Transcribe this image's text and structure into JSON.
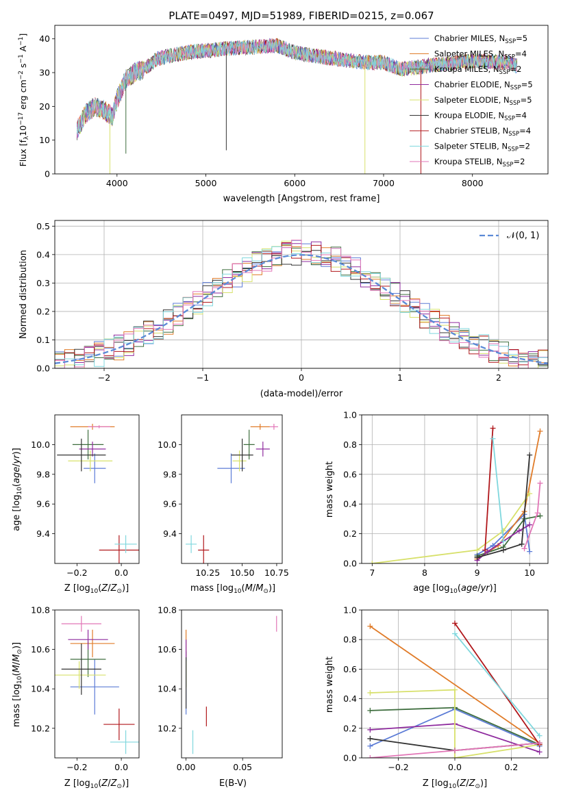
{
  "figure_title": "PLATE=0497, MJD=51989, FIBERID=0215, z=0.067",
  "colors": [
    "#5b7bd6",
    "#e07b28",
    "#3d6d3d",
    "#8e2a9e",
    "#d7e06a",
    "#333333",
    "#b0161a",
    "#7fd7dd",
    "#e276b7"
  ],
  "legend_labels": [
    "Chabrier MILES, N_SSP=5",
    "Salpeter MILES, N_SSP=4",
    "Kroupa MILES, N_SSP=2",
    "Chabrier ELODIE, N_SSP=5",
    "Salpeter ELODIE, N_SSP=5",
    "Kroupa ELODIE, N_SSP=4",
    "Chabrier STELIB, N_SSP=4",
    "Salpeter STELIB, N_SSP=2",
    "Kroupa STELIB, N_SSP=2"
  ],
  "chart_data": [
    {
      "id": "spectrum",
      "type": "line",
      "xlabel": "wavelength [Angstrom, rest frame]",
      "ylabel": "Flux [f_λ10^-17 erg cm^-2 s^-1 A^-1]",
      "xlim": [
        3300,
        8850
      ],
      "ylim": [
        0,
        44
      ],
      "xticks": [
        4000,
        5000,
        6000,
        7000,
        8000
      ],
      "yticks": [
        0,
        10,
        20,
        30,
        40
      ],
      "grid": false,
      "legend": "upper-right",
      "continuum_knots": [
        [
          3550,
          13
        ],
        [
          3650,
          18
        ],
        [
          3750,
          20
        ],
        [
          3850,
          19
        ],
        [
          3950,
          17
        ],
        [
          4000,
          22
        ],
        [
          4100,
          28
        ],
        [
          4200,
          30
        ],
        [
          4300,
          31
        ],
        [
          4450,
          34
        ],
        [
          4600,
          35
        ],
        [
          4800,
          36
        ],
        [
          5000,
          36.5
        ],
        [
          5200,
          37
        ],
        [
          5500,
          37.5
        ],
        [
          5800,
          38
        ],
        [
          6000,
          36
        ],
        [
          6200,
          35
        ],
        [
          6500,
          34
        ],
        [
          6800,
          33
        ],
        [
          7000,
          33
        ],
        [
          7200,
          31
        ],
        [
          7500,
          32
        ],
        [
          8000,
          33.5
        ],
        [
          8400,
          33
        ],
        [
          8500,
          32
        ]
      ],
      "spikes": [
        [
          3920,
          0
        ],
        [
          4100,
          6
        ],
        [
          5230,
          7
        ],
        [
          6790,
          0
        ],
        [
          7420,
          0
        ]
      ]
    },
    {
      "id": "residuals",
      "type": "histogram",
      "xlabel": "(data-model)/error",
      "ylabel": "Normed distribution",
      "xlim": [
        -2.5,
        2.5
      ],
      "ylim": [
        0,
        0.52
      ],
      "xticks": [
        -2,
        -1,
        0,
        1,
        2
      ],
      "yticks": [
        0.0,
        0.1,
        0.2,
        0.3,
        0.4,
        0.5
      ],
      "grid": true,
      "bin_edges_start": -2.5,
      "bin_width": 0.1,
      "reference_curve": "𝒩(0, 1)",
      "legend": "upper-right"
    },
    {
      "id": "age-vs-Z",
      "type": "errorbar",
      "xlabel": "Z [log10(Z/Z☉)]",
      "ylabel": "age  [log10(age/yr)]",
      "xlim": [
        -0.3,
        0.08
      ],
      "ylim": [
        9.2,
        10.2
      ],
      "xticks": [
        -0.2,
        0.0
      ],
      "yticks": [
        9.4,
        9.6,
        9.8,
        10.0
      ],
      "grid": false,
      "points": [
        {
          "x": -0.12,
          "xerr": 0.05,
          "y": 9.84,
          "yerr": 0.1
        },
        {
          "x": -0.13,
          "xerr": 0.1,
          "y": 10.12,
          "yerr": 0.02
        },
        {
          "x": -0.15,
          "xerr": 0.07,
          "y": 10.0,
          "yerr": 0.1
        },
        {
          "x": -0.13,
          "xerr": 0.06,
          "y": 9.97,
          "yerr": 0.05
        },
        {
          "x": -0.14,
          "xerr": 0.1,
          "y": 9.89,
          "yerr": 0.07
        },
        {
          "x": -0.18,
          "xerr": 0.11,
          "y": 9.93,
          "yerr": 0.11
        },
        {
          "x": -0.01,
          "xerr": 0.09,
          "y": 9.29,
          "yerr": 0.1
        },
        {
          "x": 0.02,
          "xerr": 0.05,
          "y": 9.33,
          "yerr": 0.06
        },
        {
          "x": -0.1,
          "xerr": 0.05,
          "y": 10.12,
          "yerr": 0.01
        }
      ]
    },
    {
      "id": "age-vs-mass",
      "type": "errorbar",
      "xlabel": "mass [log10(M/M☉)]",
      "ylabel": "",
      "xlim": [
        10.06,
        10.79
      ],
      "ylim": [
        9.2,
        10.2
      ],
      "xticks": [
        10.25,
        10.5,
        10.75
      ],
      "xticklabels": [
        "10.25",
        "10.50",
        "10.75"
      ],
      "yticks": [
        9.4,
        9.6,
        9.8,
        10.0
      ],
      "grid": false,
      "points": [
        {
          "x": 10.42,
          "xerr": 0.1,
          "y": 9.84,
          "yerr": 0.1
        },
        {
          "x": 10.63,
          "xerr": 0.07,
          "y": 10.12,
          "yerr": 0.02
        },
        {
          "x": 10.55,
          "xerr": 0.04,
          "y": 10.0,
          "yerr": 0.1
        },
        {
          "x": 10.65,
          "xerr": 0.05,
          "y": 9.97,
          "yerr": 0.05
        },
        {
          "x": 10.48,
          "xerr": 0.05,
          "y": 9.89,
          "yerr": 0.07
        },
        {
          "x": 10.5,
          "xerr": 0.08,
          "y": 9.93,
          "yerr": 0.11
        },
        {
          "x": 10.22,
          "xerr": 0.04,
          "y": 9.29,
          "yerr": 0.1
        },
        {
          "x": 10.13,
          "xerr": 0.04,
          "y": 9.33,
          "yerr": 0.06
        },
        {
          "x": 10.73,
          "xerr": 0.03,
          "y": 10.12,
          "yerr": 0.02
        }
      ]
    },
    {
      "id": "weight-vs-age",
      "type": "line",
      "xlabel": "age  [log10(age/yr)]",
      "ylabel": "mass weight",
      "xlim": [
        6.8,
        10.35
      ],
      "ylim": [
        0,
        1
      ],
      "xticks": [
        7,
        8,
        9,
        10
      ],
      "yticks": [
        0.0,
        0.2,
        0.4,
        0.6,
        0.8,
        1.0
      ],
      "grid": true,
      "series": [
        {
          "x": [
            9.0,
            9.3,
            9.9,
            10.0
          ],
          "y": [
            0.06,
            0.12,
            0.33,
            0.08
          ]
        },
        {
          "x": [
            9.0,
            9.4,
            9.9,
            10.2
          ],
          "y": [
            0.03,
            0.12,
            0.35,
            0.89
          ]
        },
        {
          "x": [
            9.0,
            9.5,
            9.9,
            10.2
          ],
          "y": [
            0.05,
            0.11,
            0.3,
            0.32
          ]
        },
        {
          "x": [
            9.0,
            9.2,
            9.8,
            10.0
          ],
          "y": [
            0.02,
            0.08,
            0.22,
            0.26
          ]
        },
        {
          "x": [
            7.0,
            9.0,
            9.5,
            10.0
          ],
          "y": [
            0.0,
            0.09,
            0.22,
            0.47
          ]
        },
        {
          "x": [
            9.0,
            9.5,
            9.85,
            10.0
          ],
          "y": [
            0.04,
            0.09,
            0.13,
            0.73
          ]
        },
        {
          "x": [
            9.15,
            9.3
          ],
          "y": [
            0.09,
            0.91
          ]
        },
        {
          "x": [
            9.3,
            9.5
          ],
          "y": [
            0.84,
            0.15
          ]
        },
        {
          "x": [
            9.9,
            10.15,
            10.2
          ],
          "y": [
            0.1,
            0.34,
            0.54
          ]
        }
      ]
    },
    {
      "id": "mass-vs-Z",
      "type": "errorbar",
      "xlabel": "Z [log10(Z/Z☉)]",
      "ylabel": "mass [log10(M/M☉)]",
      "xlim": [
        -0.3,
        0.08
      ],
      "ylim": [
        10.05,
        10.8
      ],
      "xticks": [
        -0.2,
        0.0
      ],
      "yticks": [
        10.2,
        10.4,
        10.6,
        10.8
      ],
      "grid": false,
      "points": [
        {
          "x": -0.12,
          "xerr": 0.11,
          "y": 10.41,
          "yerr": 0.14
        },
        {
          "x": -0.13,
          "xerr": 0.1,
          "y": 10.63,
          "yerr": 0.07
        },
        {
          "x": -0.15,
          "xerr": 0.08,
          "y": 10.55,
          "yerr": 0.09
        },
        {
          "x": -0.15,
          "xerr": 0.09,
          "y": 10.65,
          "yerr": 0.05
        },
        {
          "x": -0.19,
          "xerr": 0.12,
          "y": 10.47,
          "yerr": 0.07
        },
        {
          "x": -0.18,
          "xerr": 0.09,
          "y": 10.5,
          "yerr": 0.13
        },
        {
          "x": -0.01,
          "xerr": 0.07,
          "y": 10.22,
          "yerr": 0.08
        },
        {
          "x": 0.02,
          "xerr": 0.07,
          "y": 10.13,
          "yerr": 0.06
        },
        {
          "x": -0.18,
          "xerr": 0.09,
          "y": 10.73,
          "yerr": 0.04
        }
      ]
    },
    {
      "id": "mass-vs-ebv",
      "type": "errorbar",
      "xlabel": "E(B-V)",
      "ylabel": "",
      "xlim": [
        -0.004,
        0.085
      ],
      "ylim": [
        10.05,
        10.8
      ],
      "xticks": [
        0.0,
        0.05
      ],
      "xticklabels": [
        "0.00",
        "0.05"
      ],
      "yticks": [
        10.2,
        10.4,
        10.6,
        10.8
      ],
      "grid": false,
      "points": [
        {
          "x": 0.0,
          "xerr": 0.0,
          "y": 10.41,
          "yerr": 0.14
        },
        {
          "x": 0.0,
          "xerr": 0.0,
          "y": 10.63,
          "yerr": 0.07
        },
        {
          "x": 0.0,
          "xerr": 0.0,
          "y": 10.5,
          "yerr": 0.09
        },
        {
          "x": 0.0,
          "xerr": 0.0,
          "y": 10.6,
          "yerr": 0.05
        },
        {
          "x": 0.0,
          "xerr": 0.0,
          "y": 10.47,
          "yerr": 0.07
        },
        {
          "x": 0.0,
          "xerr": 0.0,
          "y": 10.43,
          "yerr": 0.13
        },
        {
          "x": 0.018,
          "xerr": 0.0,
          "y": 10.26,
          "yerr": 0.05
        },
        {
          "x": 0.006,
          "xerr": 0.0,
          "y": 10.13,
          "yerr": 0.06
        },
        {
          "x": 0.08,
          "xerr": 0.0,
          "y": 10.73,
          "yerr": 0.04
        }
      ]
    },
    {
      "id": "weight-vs-Z",
      "type": "line",
      "xlabel": "Z [log10(Z/Z☉)]",
      "ylabel": "mass weight",
      "xlim": [
        -0.33,
        0.33
      ],
      "ylim": [
        0,
        1
      ],
      "xticks": [
        -0.2,
        0.0,
        0.2
      ],
      "yticks": [
        0.0,
        0.2,
        0.4,
        0.6,
        0.8,
        1.0
      ],
      "grid": true,
      "series": [
        {
          "x": [
            -0.3,
            0.0,
            0.3
          ],
          "y": [
            0.08,
            0.33,
            0.08
          ]
        },
        {
          "x": [
            -0.3,
            0.3
          ],
          "y": [
            0.89,
            0.1
          ]
        },
        {
          "x": [
            -0.3,
            0.0,
            0.3
          ],
          "y": [
            0.32,
            0.34,
            0.09
          ]
        },
        {
          "x": [
            -0.3,
            0.0,
            0.3
          ],
          "y": [
            0.19,
            0.23,
            0.04
          ]
        },
        {
          "x": [
            -0.3,
            0.0,
            0.0,
            0.3
          ],
          "y": [
            0.44,
            0.46,
            0.0,
            0.09
          ]
        },
        {
          "x": [
            -0.3,
            0.0,
            0.3
          ],
          "y": [
            0.13,
            0.05,
            0.1
          ]
        },
        {
          "x": [
            0.0,
            0.3
          ],
          "y": [
            0.91,
            0.09
          ]
        },
        {
          "x": [
            0.0,
            0.3
          ],
          "y": [
            0.84,
            0.15
          ]
        },
        {
          "x": [
            -0.3,
            0.0,
            0.3
          ],
          "y": [
            0.0,
            0.05,
            0.1
          ]
        }
      ]
    }
  ]
}
